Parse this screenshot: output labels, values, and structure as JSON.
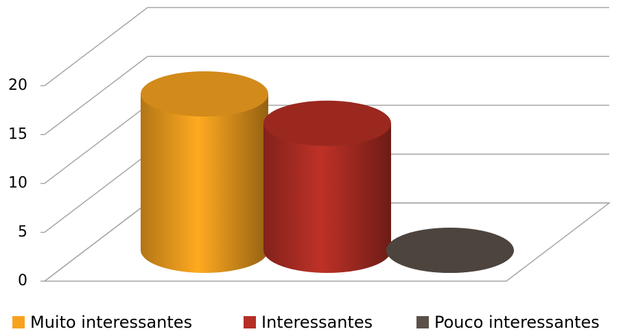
{
  "chart_data": {
    "type": "cylinder3d",
    "categories": [
      null
    ],
    "series": [
      {
        "name": "Muito interessantes",
        "color": "#f7a21e",
        "values": [
          16
        ]
      },
      {
        "name": "Interessantes",
        "color": "#b52f25",
        "values": [
          13
        ]
      },
      {
        "name": "Pouco interessantes",
        "color": "#5b5049",
        "values": [
          0
        ]
      }
    ],
    "ylim": [
      0,
      20
    ],
    "yticks": [
      0,
      5,
      10,
      15,
      20
    ],
    "grid": true,
    "legend": "bottom"
  }
}
